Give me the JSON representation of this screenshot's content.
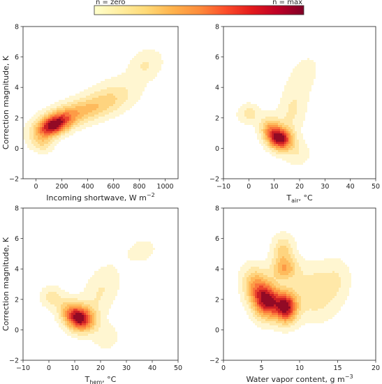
{
  "colorbar": {
    "label_min": "n = zero",
    "label_max": "n = max",
    "colors": [
      "#ffffcc",
      "#ffeda0",
      "#fed976",
      "#feb24c",
      "#fd8d3c",
      "#fc4e2a",
      "#e31a1c",
      "#bd0026",
      "#800026"
    ]
  },
  "levels": [
    {
      "fill": "#fff5cc",
      "opacity": 0.9
    },
    {
      "fill": "#ffe7a3",
      "opacity": 0.9
    },
    {
      "fill": "#fed27a",
      "opacity": 0.9
    },
    {
      "fill": "#feb85a",
      "opacity": 0.9
    },
    {
      "fill": "#fd9844",
      "opacity": 0.9
    },
    {
      "fill": "#f8703a",
      "opacity": 0.9
    },
    {
      "fill": "#e8402c",
      "opacity": 0.92
    },
    {
      "fill": "#c81c24",
      "opacity": 0.95
    },
    {
      "fill": "#8e0a26",
      "opacity": 0.95
    }
  ],
  "chart_data": [
    {
      "type": "heatmap",
      "subtype": "kde-density",
      "xlabel": "Incoming shortwave, W m",
      "xlabel_sup": "−2",
      "ylabel": "Correction magnitude, K",
      "xlim": [
        -100,
        1100
      ],
      "ylim": [
        -2,
        8
      ],
      "xticks": [
        0,
        200,
        400,
        600,
        800,
        1000
      ],
      "xtick_labels": [
        "0",
        "200",
        "400",
        "600",
        "800",
        "1000"
      ],
      "yticks": [
        -2,
        0,
        2,
        4,
        6,
        8
      ],
      "ytick_labels": [
        "−2",
        "0",
        "2",
        "4",
        "6",
        "8"
      ],
      "density_peaks": [
        {
          "x": 130,
          "y": 1.5,
          "sx": 95,
          "sy": 0.55,
          "rho": 0.45,
          "w": 1.0
        },
        {
          "x": 330,
          "y": 2.4,
          "sx": 180,
          "sy": 0.7,
          "rho": 0.55,
          "w": 0.45
        },
        {
          "x": 600,
          "y": 3.5,
          "sx": 140,
          "sy": 0.8,
          "rho": 0.3,
          "w": 0.22
        },
        {
          "x": 850,
          "y": 5.5,
          "sx": 90,
          "sy": 0.7,
          "rho": 0.2,
          "w": 0.2
        },
        {
          "x": 50,
          "y": 0.3,
          "sx": 60,
          "sy": 0.4,
          "rho": 0.0,
          "w": 0.25
        }
      ]
    },
    {
      "type": "heatmap",
      "subtype": "kde-density",
      "xlabel": "T",
      "xlabel_sub": "air",
      "xlabel_tail": ", °C",
      "ylabel": "",
      "xlim": [
        -10,
        50
      ],
      "ylim": [
        -2,
        8
      ],
      "xticks": [
        -10,
        0,
        10,
        20,
        30,
        40,
        50
      ],
      "xtick_labels": [
        "−10",
        "0",
        "10",
        "20",
        "30",
        "40",
        "50"
      ],
      "yticks": [
        -2,
        0,
        2,
        4,
        6,
        8
      ],
      "ytick_labels": [
        "−2",
        "0",
        "2",
        "4",
        "6",
        "8"
      ],
      "density_peaks": [
        {
          "x": 13,
          "y": 0.6,
          "sx": 3.0,
          "sy": 0.5,
          "rho": 0.0,
          "w": 1.0
        },
        {
          "x": 9,
          "y": 1.1,
          "sx": 3.0,
          "sy": 0.6,
          "rho": -0.2,
          "w": 0.8
        },
        {
          "x": 0,
          "y": 2.3,
          "sx": 3.0,
          "sy": 0.45,
          "rho": 0.0,
          "w": 0.3
        },
        {
          "x": 17,
          "y": 2.5,
          "sx": 4.0,
          "sy": 1.2,
          "rho": 0.3,
          "w": 0.25
        },
        {
          "x": 22,
          "y": 5.0,
          "sx": 5.0,
          "sy": 1.0,
          "rho": 0.3,
          "w": 0.12
        },
        {
          "x": 19,
          "y": -0.3,
          "sx": 3.5,
          "sy": 0.6,
          "rho": 0.0,
          "w": 0.2
        }
      ]
    },
    {
      "type": "heatmap",
      "subtype": "kde-density",
      "xlabel": "T",
      "xlabel_sub": "hem",
      "xlabel_tail": ", °C",
      "ylabel": "Correction magnitude, K",
      "xlim": [
        -10,
        50
      ],
      "ylim": [
        -2,
        8
      ],
      "xticks": [
        -10,
        0,
        10,
        20,
        30,
        40,
        50
      ],
      "xtick_labels": [
        "−10",
        "0",
        "10",
        "20",
        "30",
        "40",
        "50"
      ],
      "yticks": [
        -2,
        0,
        2,
        4,
        6,
        8
      ],
      "ytick_labels": [
        "−2",
        "0",
        "2",
        "4",
        "6",
        "8"
      ],
      "density_peaks": [
        {
          "x": 13,
          "y": 0.7,
          "sx": 3.5,
          "sy": 0.55,
          "rho": 0.0,
          "w": 1.0
        },
        {
          "x": 9,
          "y": 1.1,
          "sx": 3.5,
          "sy": 0.6,
          "rho": -0.2,
          "w": 0.75
        },
        {
          "x": 1,
          "y": 2.2,
          "sx": 3.0,
          "sy": 0.5,
          "rho": 0.0,
          "w": 0.3
        },
        {
          "x": 20,
          "y": 2.5,
          "sx": 5.0,
          "sy": 1.2,
          "rho": 0.4,
          "w": 0.25
        },
        {
          "x": 36,
          "y": 5.2,
          "sx": 5.0,
          "sy": 0.7,
          "rho": 0.2,
          "w": 0.14
        },
        {
          "x": 22,
          "y": -0.4,
          "sx": 3.5,
          "sy": 0.6,
          "rho": 0.0,
          "w": 0.2
        }
      ]
    },
    {
      "type": "heatmap",
      "subtype": "kde-density",
      "xlabel": "Water vapor content, g m",
      "xlabel_sup": "−3",
      "ylabel": "",
      "xlim": [
        0,
        20
      ],
      "ylim": [
        -2,
        8
      ],
      "xticks": [
        0,
        5,
        10,
        15,
        20
      ],
      "xtick_labels": [
        "0",
        "5",
        "10",
        "15",
        "20"
      ],
      "yticks": [
        -2,
        0,
        2,
        4,
        6,
        8
      ],
      "ytick_labels": [
        "−2",
        "0",
        "2",
        "4",
        "6",
        "8"
      ],
      "density_peaks": [
        {
          "x": 5.8,
          "y": 1.9,
          "sx": 1.2,
          "sy": 0.8,
          "rho": 0.0,
          "w": 0.9
        },
        {
          "x": 8.2,
          "y": 1.5,
          "sx": 1.0,
          "sy": 0.7,
          "rho": 0.0,
          "w": 1.0
        },
        {
          "x": 4.3,
          "y": 2.8,
          "sx": 1.2,
          "sy": 0.9,
          "rho": -0.2,
          "w": 0.55
        },
        {
          "x": 8.0,
          "y": 4.0,
          "sx": 1.2,
          "sy": 0.5,
          "rho": 0.0,
          "w": 0.45
        },
        {
          "x": 7.8,
          "y": 5.2,
          "sx": 1.0,
          "sy": 0.7,
          "rho": 0.0,
          "w": 0.35
        },
        {
          "x": 12.0,
          "y": 2.5,
          "sx": 2.2,
          "sy": 1.2,
          "rho": 0.0,
          "w": 0.3
        },
        {
          "x": 15.0,
          "y": 3.5,
          "sx": 1.2,
          "sy": 0.9,
          "rho": 0.0,
          "w": 0.12
        }
      ]
    }
  ]
}
